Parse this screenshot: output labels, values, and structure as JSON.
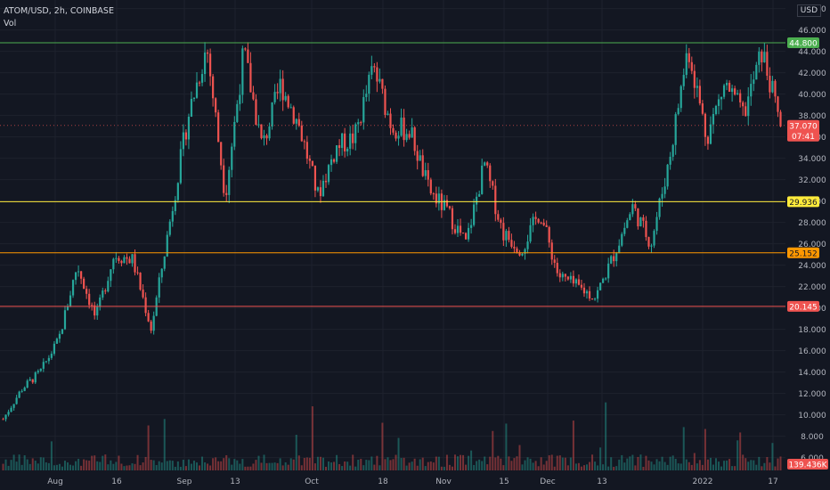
{
  "header": {
    "symbol_line": "ATOM/USD, 2h, COINBASE",
    "vol_label": "Vol",
    "currency": "USD"
  },
  "colors": {
    "background": "#131722",
    "grid": "#1e222d",
    "up": "#26a69a",
    "down": "#ef5350",
    "resistance": "#4caf50",
    "level_yellow": "#ffeb3b",
    "level_orange": "#ff9800",
    "support": "#ef5350"
  },
  "chart_data": {
    "type": "candlestick",
    "title": "ATOM/USD, 2h, COINBASE",
    "y_axis": {
      "ticks": [
        "6.000",
        "8.000",
        "10.000",
        "12.000",
        "14.000",
        "16.000",
        "18.000",
        "20.000",
        "22.000",
        "24.000",
        "26.000",
        "28.000",
        "30.000",
        "32.000",
        "34.000",
        "36.000",
        "38.000",
        "40.000",
        "42.000",
        "44.000",
        "46.000",
        "48.000"
      ],
      "range": [
        4.8,
        48.8
      ]
    },
    "x_axis": {
      "ticks": [
        "Aug",
        "16",
        "Sep",
        "13",
        "Oct",
        "18",
        "Nov",
        "15",
        "Dec",
        "13",
        "2022",
        "17"
      ]
    },
    "horizontal_levels": [
      {
        "value": 44.8,
        "label": "44.800",
        "color": "#4caf50"
      },
      {
        "value": 29.936,
        "label": "29.936",
        "color": "#ffeb3b"
      },
      {
        "value": 25.152,
        "label": "25.152",
        "color": "#ff9800"
      },
      {
        "value": 20.145,
        "label": "20.145",
        "color": "#ef5350"
      }
    ],
    "last_price": {
      "value": 37.07,
      "label": "37.070",
      "countdown": "07:41"
    },
    "volume_label": "139.436K",
    "approx_close_path": [
      {
        "date": "Aug 1",
        "close": 9.6
      },
      {
        "date": "Aug 8",
        "close": 12.4
      },
      {
        "date": "Aug 15",
        "close": 14.0
      },
      {
        "date": "Aug 20",
        "close": 17.0
      },
      {
        "date": "Aug 21",
        "close": 24.0
      },
      {
        "date": "Aug 25",
        "close": 19.0
      },
      {
        "date": "Aug 30",
        "close": 25.0
      },
      {
        "date": "Sep 5",
        "close": 24.5
      },
      {
        "date": "Sep 7",
        "close": 18.0
      },
      {
        "date": "Sep 9",
        "close": 28.0
      },
      {
        "date": "Sep 12",
        "close": 38.0
      },
      {
        "date": "Sep 15",
        "close": 44.5
      },
      {
        "date": "Sep 17",
        "close": 30.5
      },
      {
        "date": "Sep 20",
        "close": 44.0
      },
      {
        "date": "Sep 25",
        "close": 35.0
      },
      {
        "date": "Sep 28",
        "close": 41.0
      },
      {
        "date": "Oct 2",
        "close": 37.0
      },
      {
        "date": "Oct 10",
        "close": 30.5
      },
      {
        "date": "Oct 15",
        "close": 35.0
      },
      {
        "date": "Oct 24",
        "close": 36.0
      },
      {
        "date": "Oct 28",
        "close": 42.5
      },
      {
        "date": "Nov 1",
        "close": 37.0
      },
      {
        "date": "Nov 10",
        "close": 36.5
      },
      {
        "date": "Nov 14",
        "close": 31.0
      },
      {
        "date": "Nov 18",
        "close": 29.0
      },
      {
        "date": "Nov 22",
        "close": 26.0
      },
      {
        "date": "Nov 26",
        "close": 33.5
      },
      {
        "date": "Nov 30",
        "close": 27.0
      },
      {
        "date": "Dec 4",
        "close": 25.5
      },
      {
        "date": "Dec 6",
        "close": 29.0
      },
      {
        "date": "Dec 8",
        "close": 23.0
      },
      {
        "date": "Dec 14",
        "close": 22.0
      },
      {
        "date": "Dec 18",
        "close": 21.0
      },
      {
        "date": "Dec 21",
        "close": 25.0
      },
      {
        "date": "Dec 24",
        "close": 29.5
      },
      {
        "date": "Dec 28",
        "close": 26.0
      },
      {
        "date": "Dec 31",
        "close": 34.0
      },
      {
        "date": "Jan 3",
        "close": 44.5
      },
      {
        "date": "Jan 7",
        "close": 36.0
      },
      {
        "date": "Jan 10",
        "close": 41.0
      },
      {
        "date": "Jan 14",
        "close": 38.0
      },
      {
        "date": "Jan 16",
        "close": 44.0
      },
      {
        "date": "Jan 19",
        "close": 37.07
      }
    ]
  }
}
